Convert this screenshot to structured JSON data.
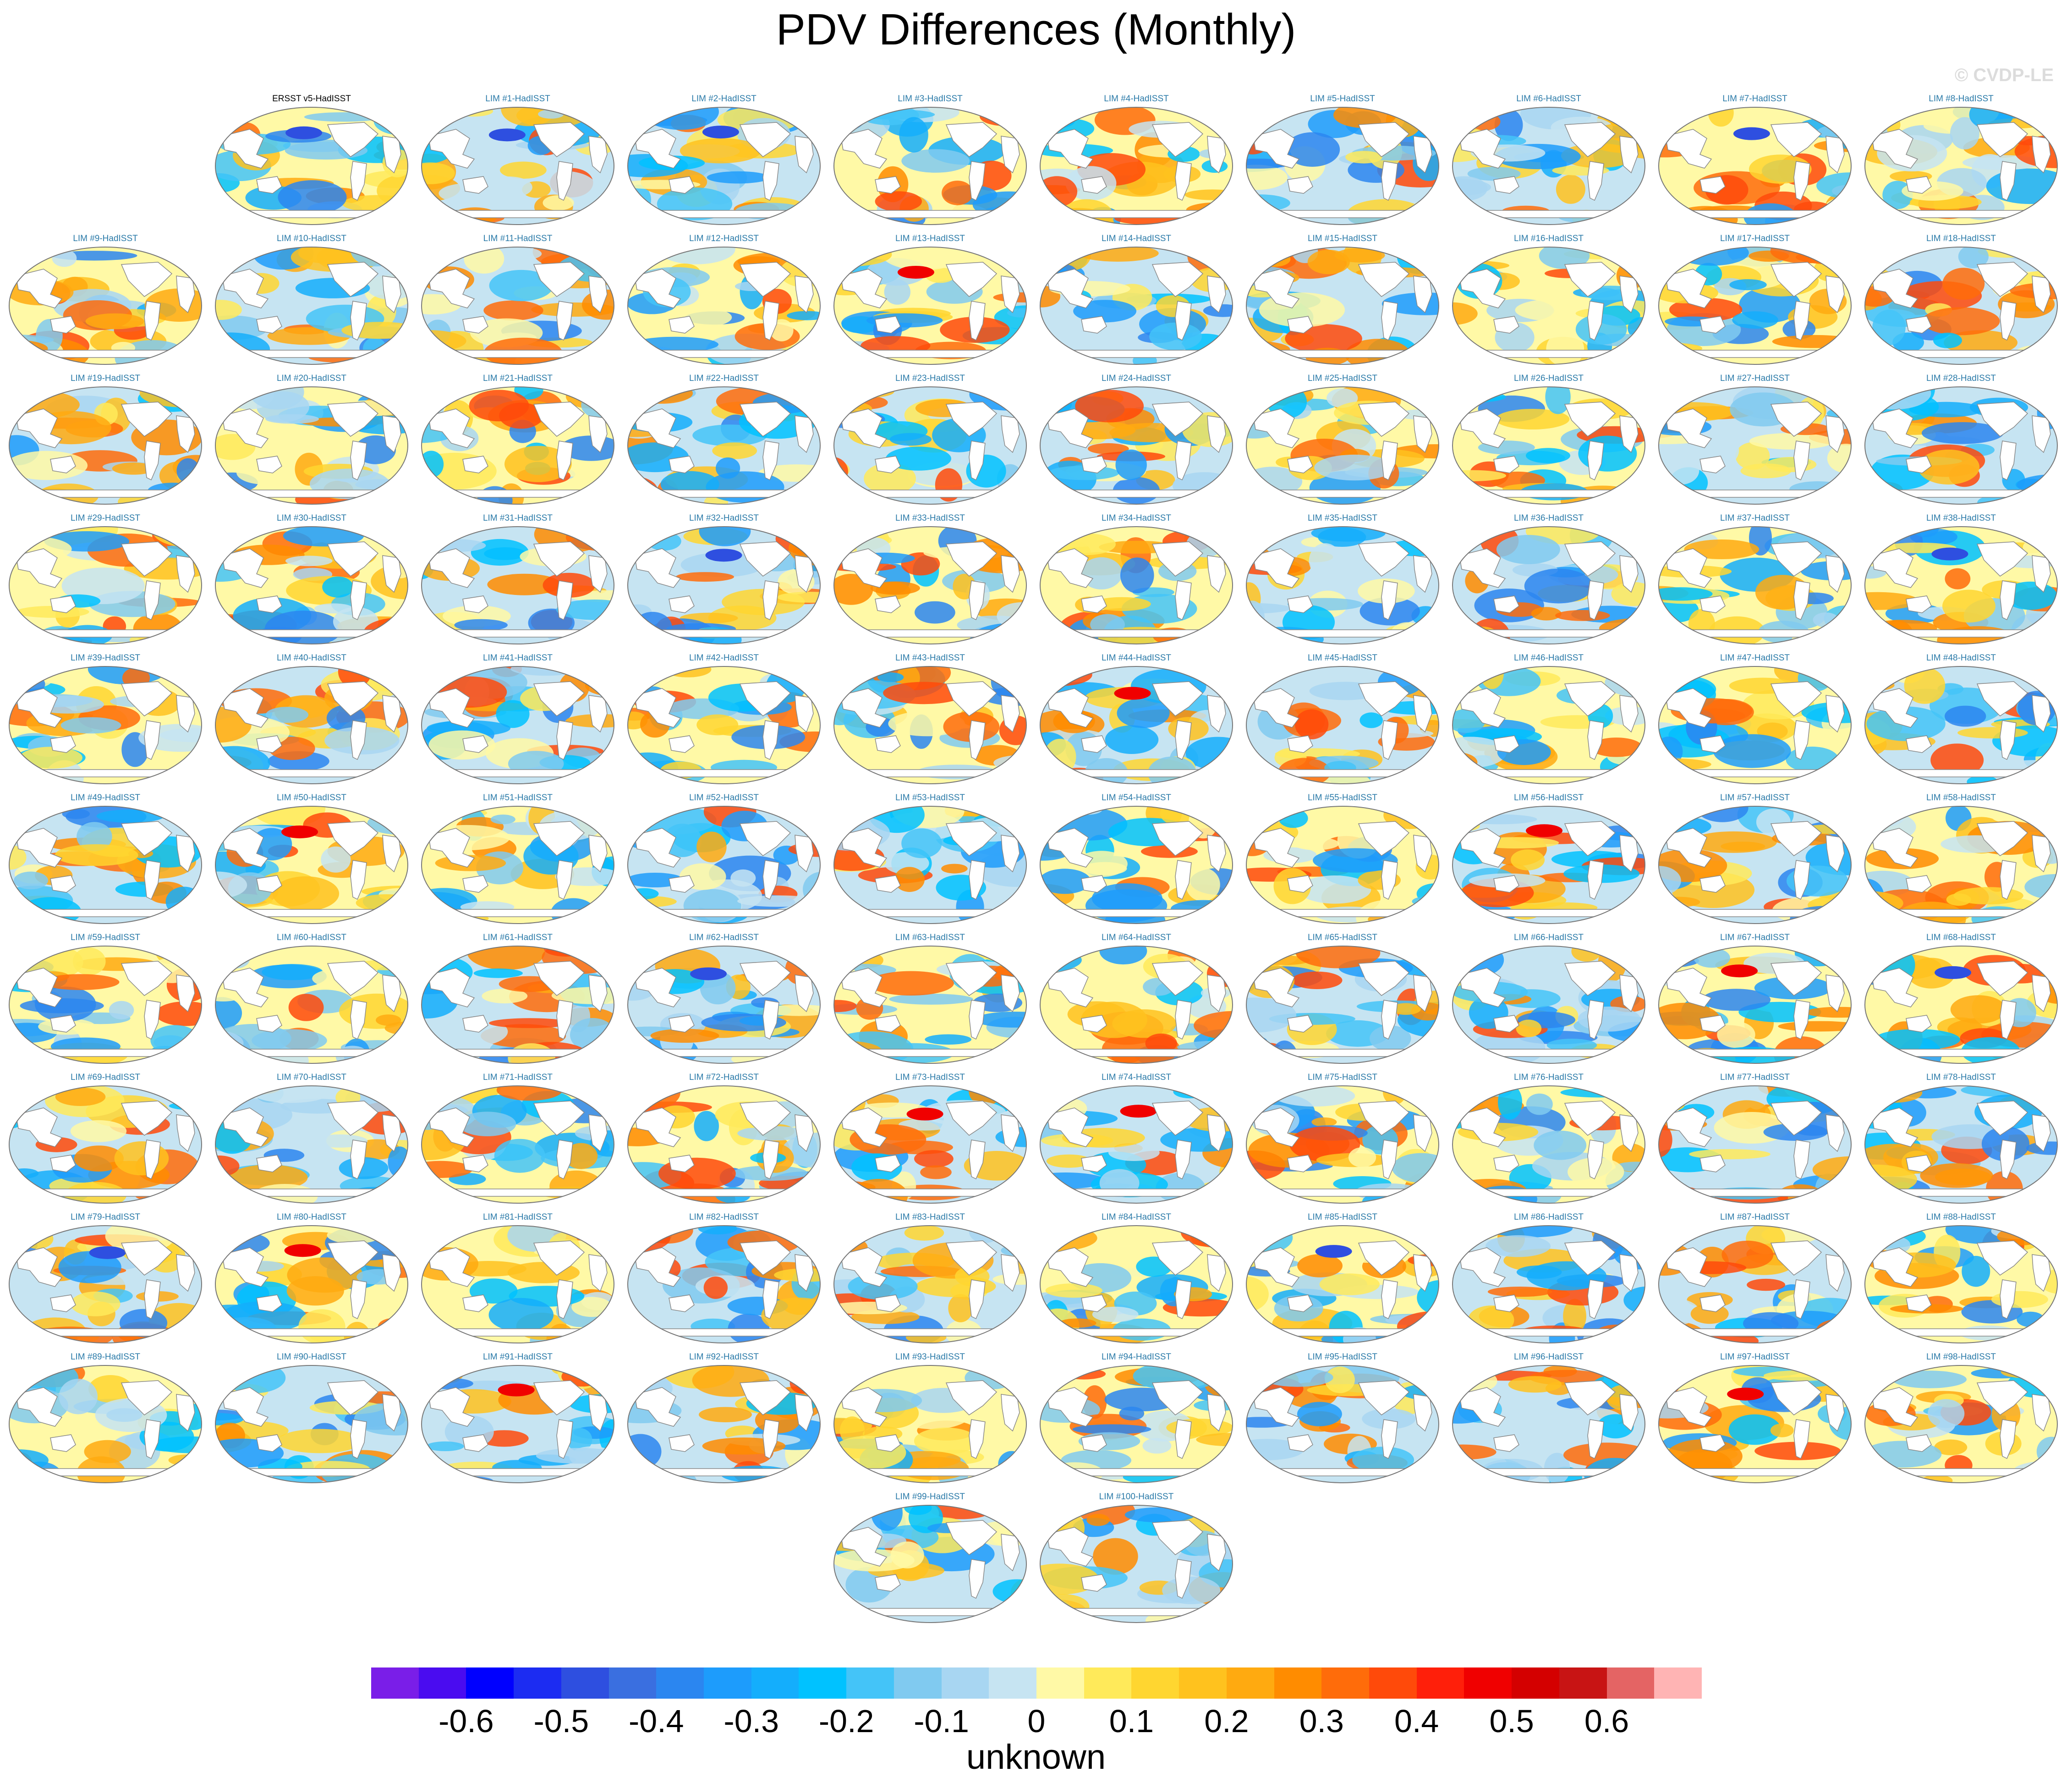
{
  "title": "PDV Differences (Monthly)",
  "watermark": "© CVDP-LE",
  "obs_panel_label": "ERSST v5-HadISST",
  "member_label_prefix": "LIM #",
  "member_label_suffix": "-HadISST",
  "member_count": 100,
  "colorbar": {
    "title": "unknown",
    "tick_labels": [
      "-0.6",
      "-0.5",
      "-0.4",
      "-0.3",
      "-0.2",
      "-0.1",
      "0",
      "0.1",
      "0.2",
      "0.3",
      "0.4",
      "0.5",
      "0.6"
    ],
    "colors": [
      "#7a1ee8",
      "#4a0cf0",
      "#0000ff",
      "#1c2cf2",
      "#2e4fe0",
      "#3a6fe0",
      "#2b86f0",
      "#1d9cfc",
      "#14aefc",
      "#00c2ff",
      "#44c4f8",
      "#80caf0",
      "#a8d6f2",
      "#c6e4f2",
      "#fff9a6",
      "#ffea5a",
      "#ffd630",
      "#ffc21e",
      "#ffaa10",
      "#ff8c00",
      "#ff6c0a",
      "#ff4a0a",
      "#ff1f0a",
      "#f00000",
      "#d40000",
      "#c81414",
      "#e46464",
      "#ffb4b4"
    ]
  },
  "colors": {
    "label": "#2a7aa8",
    "land": "#ffffff",
    "coast": "#888888"
  }
}
